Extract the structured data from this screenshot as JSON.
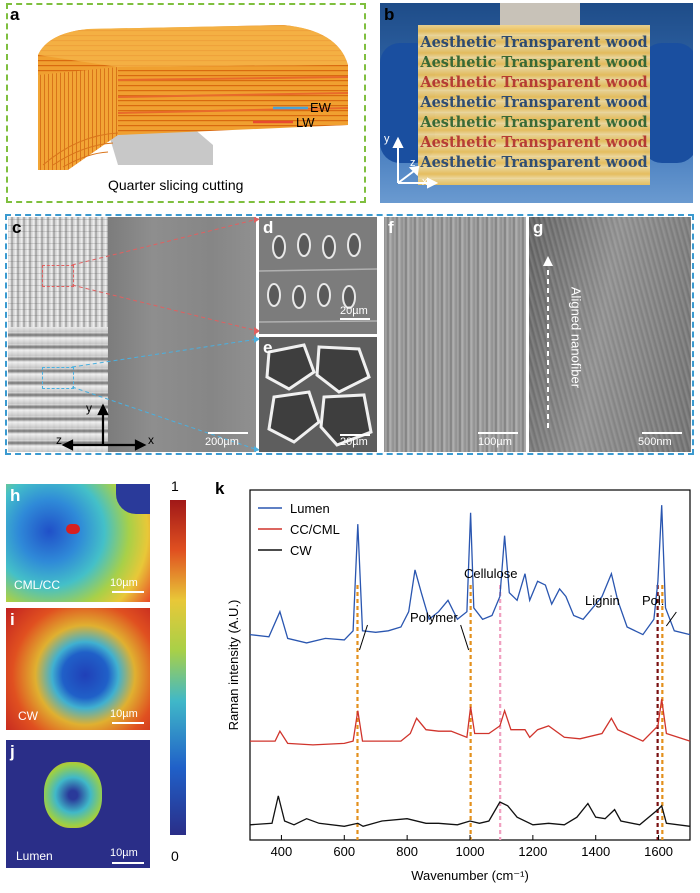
{
  "panels": {
    "a": {
      "label": "a",
      "caption": "Quarter slicing cutting",
      "ew": "EW",
      "lw": "LW"
    },
    "b": {
      "label": "b",
      "line": "Aesthetic Transparent wood",
      "line_colors": [
        "#2e4a6e",
        "#3a6a2e",
        "#c0392b",
        "#2e4a6e",
        "#3a6a2e",
        "#c0392b",
        "#2e4a6e"
      ],
      "axes": {
        "y": "y",
        "z": "z",
        "x": "x"
      }
    },
    "c": {
      "label": "c",
      "scale": "200µm",
      "axes": {
        "y": "y",
        "z": "z",
        "x": "x"
      }
    },
    "d": {
      "label": "d",
      "scale": "20µm"
    },
    "e": {
      "label": "e",
      "scale": "20µm"
    },
    "f": {
      "label": "f",
      "scale": "100µm"
    },
    "g": {
      "label": "g",
      "scale": "500nm",
      "arrow_text": "Aligned nanofiber"
    },
    "h": {
      "label": "h",
      "name": "CML/CC",
      "scale": "10µm"
    },
    "i": {
      "label": "i",
      "name": "CW",
      "scale": "10µm"
    },
    "j": {
      "label": "j",
      "name": "Lumen",
      "scale": "10µm"
    },
    "colorbar": {
      "max": "1",
      "min": "0"
    },
    "k": {
      "label": "k"
    }
  },
  "chart_data": {
    "type": "line",
    "xlabel": "Wavenumber (cm⁻¹)",
    "ylabel": "Raman intensity (A.U.)",
    "xlim": [
      300,
      1700
    ],
    "xticks": [
      400,
      600,
      800,
      1000,
      1200,
      1400,
      1600
    ],
    "series": [
      {
        "name": "Lumen",
        "color": "#2a56b0",
        "offset": 2.35,
        "points": [
          [
            300,
            0.25
          ],
          [
            360,
            0.22
          ],
          [
            395,
            0.55
          ],
          [
            420,
            0.2
          ],
          [
            480,
            0.14
          ],
          [
            540,
            0.2
          ],
          [
            600,
            0.18
          ],
          [
            628,
            0.3
          ],
          [
            643,
            1.7
          ],
          [
            658,
            0.3
          ],
          [
            700,
            0.28
          ],
          [
            740,
            0.3
          ],
          [
            780,
            0.35
          ],
          [
            805,
            0.55
          ],
          [
            825,
            1.1
          ],
          [
            845,
            0.8
          ],
          [
            870,
            0.45
          ],
          [
            900,
            0.55
          ],
          [
            930,
            0.7
          ],
          [
            960,
            0.45
          ],
          [
            990,
            0.55
          ],
          [
            1002,
            1.85
          ],
          [
            1012,
            0.6
          ],
          [
            1040,
            0.45
          ],
          [
            1070,
            0.5
          ],
          [
            1095,
            0.75
          ],
          [
            1110,
            1.55
          ],
          [
            1125,
            0.8
          ],
          [
            1150,
            0.7
          ],
          [
            1175,
            1.05
          ],
          [
            1190,
            0.7
          ],
          [
            1215,
            0.95
          ],
          [
            1240,
            0.9
          ],
          [
            1260,
            0.65
          ],
          [
            1285,
            0.85
          ],
          [
            1305,
            0.75
          ],
          [
            1330,
            0.5
          ],
          [
            1360,
            0.45
          ],
          [
            1390,
            0.6
          ],
          [
            1420,
            0.75
          ],
          [
            1450,
            1.05
          ],
          [
            1470,
            0.7
          ],
          [
            1500,
            0.35
          ],
          [
            1550,
            0.25
          ],
          [
            1585,
            0.45
          ],
          [
            1598,
            0.95
          ],
          [
            1610,
            1.95
          ],
          [
            1622,
            0.6
          ],
          [
            1650,
            0.3
          ],
          [
            1700,
            0.25
          ]
        ]
      },
      {
        "name": "CC/CML",
        "color": "#d0342c",
        "offset": 1.05,
        "points": [
          [
            300,
            0.15
          ],
          [
            380,
            0.15
          ],
          [
            395,
            0.28
          ],
          [
            420,
            0.12
          ],
          [
            500,
            0.1
          ],
          [
            600,
            0.12
          ],
          [
            628,
            0.15
          ],
          [
            643,
            0.55
          ],
          [
            658,
            0.15
          ],
          [
            780,
            0.15
          ],
          [
            810,
            0.25
          ],
          [
            830,
            0.45
          ],
          [
            860,
            0.3
          ],
          [
            900,
            0.28
          ],
          [
            940,
            0.28
          ],
          [
            990,
            0.2
          ],
          [
            1002,
            0.6
          ],
          [
            1015,
            0.25
          ],
          [
            1060,
            0.25
          ],
          [
            1095,
            0.35
          ],
          [
            1110,
            0.55
          ],
          [
            1130,
            0.3
          ],
          [
            1175,
            0.3
          ],
          [
            1190,
            0.2
          ],
          [
            1215,
            0.3
          ],
          [
            1250,
            0.35
          ],
          [
            1300,
            0.2
          ],
          [
            1350,
            0.18
          ],
          [
            1420,
            0.25
          ],
          [
            1450,
            0.45
          ],
          [
            1470,
            0.3
          ],
          [
            1550,
            0.15
          ],
          [
            1598,
            0.35
          ],
          [
            1610,
            0.7
          ],
          [
            1625,
            0.25
          ],
          [
            1700,
            0.15
          ]
        ]
      },
      {
        "name": "CW",
        "color": "#111111",
        "offset": 0.0,
        "points": [
          [
            300,
            0.1
          ],
          [
            370,
            0.12
          ],
          [
            390,
            0.48
          ],
          [
            410,
            0.15
          ],
          [
            440,
            0.1
          ],
          [
            480,
            0.18
          ],
          [
            520,
            0.12
          ],
          [
            600,
            0.08
          ],
          [
            643,
            0.12
          ],
          [
            660,
            0.08
          ],
          [
            720,
            0.15
          ],
          [
            800,
            0.18
          ],
          [
            860,
            0.12
          ],
          [
            900,
            0.12
          ],
          [
            960,
            0.1
          ],
          [
            1000,
            0.15
          ],
          [
            1030,
            0.12
          ],
          [
            1060,
            0.15
          ],
          [
            1095,
            0.4
          ],
          [
            1120,
            0.35
          ],
          [
            1150,
            0.2
          ],
          [
            1200,
            0.1
          ],
          [
            1250,
            0.12
          ],
          [
            1300,
            0.1
          ],
          [
            1340,
            0.2
          ],
          [
            1375,
            0.38
          ],
          [
            1400,
            0.2
          ],
          [
            1430,
            0.18
          ],
          [
            1460,
            0.3
          ],
          [
            1480,
            0.15
          ],
          [
            1540,
            0.1
          ],
          [
            1598,
            0.3
          ],
          [
            1610,
            0.35
          ],
          [
            1625,
            0.12
          ],
          [
            1700,
            0.08
          ]
        ]
      }
    ],
    "markers": [
      {
        "x": 642,
        "color": "#e3901c",
        "label": "Polymer"
      },
      {
        "x": 1002,
        "color": "#e3901c",
        "label": "Polymer"
      },
      {
        "x": 1096,
        "color": "#f0a0c0",
        "label": "Cellulose"
      },
      {
        "x": 1597,
        "color": "#7a1010",
        "label": "Lignin"
      },
      {
        "x": 1612,
        "color": "#e3901c",
        "label": "Pol."
      }
    ],
    "annotations": [
      "Polymer",
      "Cellulose",
      "Lignin",
      "Pol."
    ],
    "legend_position": "top-left"
  }
}
